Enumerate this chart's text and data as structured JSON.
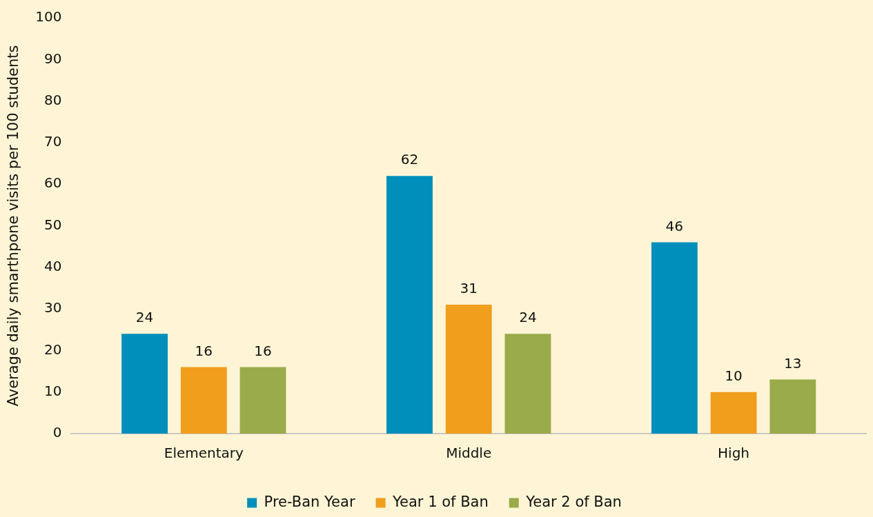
{
  "chart_data": {
    "type": "bar",
    "ylabel": "Average daily smarthpone visits per 100 students",
    "categories": [
      "Elementary",
      "Middle",
      "High"
    ],
    "series": [
      {
        "name": "Pre-Ban Year",
        "color": "#008fbb",
        "values": [
          24,
          62,
          46
        ]
      },
      {
        "name": "Year 1 of Ban",
        "color": "#f09e1c",
        "values": [
          16,
          31,
          10
        ]
      },
      {
        "name": "Year 2 of Ban",
        "color": "#9aab4b",
        "values": [
          16,
          24,
          13
        ]
      }
    ],
    "ylim": [
      0,
      100
    ],
    "yticks": [
      0,
      10,
      20,
      30,
      40,
      50,
      60,
      70,
      80,
      90,
      100
    ],
    "grid": false,
    "legend": "bottom",
    "data_labels": true
  }
}
